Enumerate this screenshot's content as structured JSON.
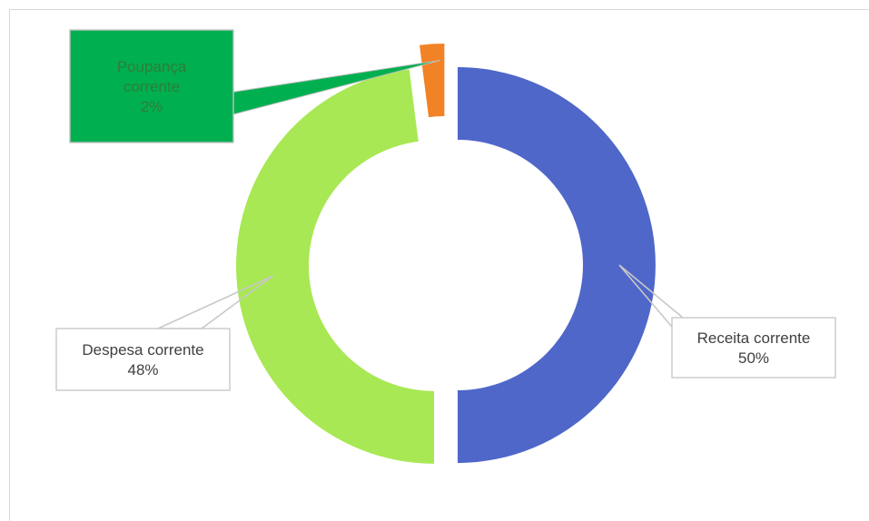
{
  "chart_data": {
    "type": "pie",
    "style": "doughnut",
    "slices": [
      {
        "category": "Receita corrente",
        "value": 50,
        "label": "50%",
        "color": "#4f67c9"
      },
      {
        "category": "Despesa corrente",
        "value": 48,
        "label": "48%",
        "color": "#a8e854"
      },
      {
        "category": "Poupança corrente",
        "value": 2,
        "label": "2%",
        "color": "#f28226"
      }
    ],
    "label_styles": [
      {
        "fill": "#ffffff",
        "border": "#c9c9c9",
        "text": "#404040"
      },
      {
        "fill": "#ffffff",
        "border": "#c9c9c9",
        "text": "#404040"
      },
      {
        "fill": "#00b050",
        "border": "#bfbfbf",
        "text": "#2e7d3a"
      }
    ],
    "title": "",
    "legend": "none"
  }
}
